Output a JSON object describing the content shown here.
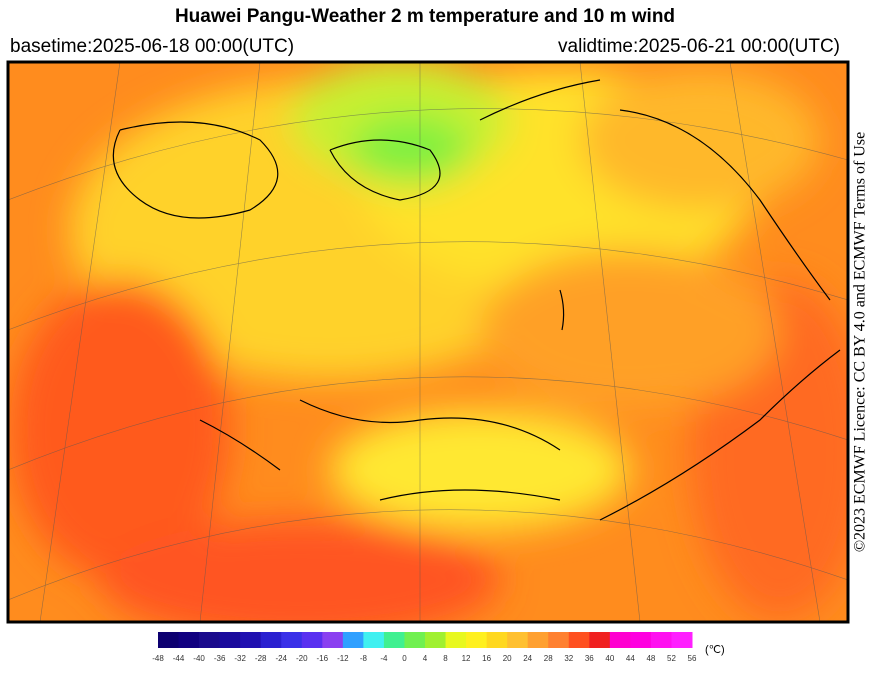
{
  "header": {
    "title": "Huawei Pangu-Weather  2 m temperature and 10 m wind",
    "basetime": "basetime:2025-06-18 00:00(UTC)",
    "validtime": "validtime:2025-06-21 00:00(UTC)"
  },
  "licence": "©2023 ECMWF Licence: CC BY 4.0 and ECMWF Terms of Use",
  "colorbar": {
    "unit": "(℃)",
    "ticks": [
      -48,
      -44,
      -40,
      -36,
      -32,
      -28,
      -24,
      -20,
      -16,
      -12,
      -8,
      -4,
      0,
      4,
      8,
      12,
      16,
      20,
      24,
      28,
      32,
      36,
      40,
      44,
      48,
      52,
      56
    ],
    "colors": [
      "#0d0070",
      "#110080",
      "#1a0a8c",
      "#1a0a9c",
      "#2010b0",
      "#2a20d0",
      "#3a30e8",
      "#5a30f0",
      "#8a40f0",
      "#30a0ff",
      "#40f0f0",
      "#40f090",
      "#70f050",
      "#a0f030",
      "#e8f820",
      "#fff020",
      "#ffd820",
      "#ffc030",
      "#ffa030",
      "#ff8030",
      "#ff5020",
      "#f02020",
      "#ff00d0",
      "#ff00e0",
      "#ff10f0",
      "#ff20ff"
    ]
  }
}
